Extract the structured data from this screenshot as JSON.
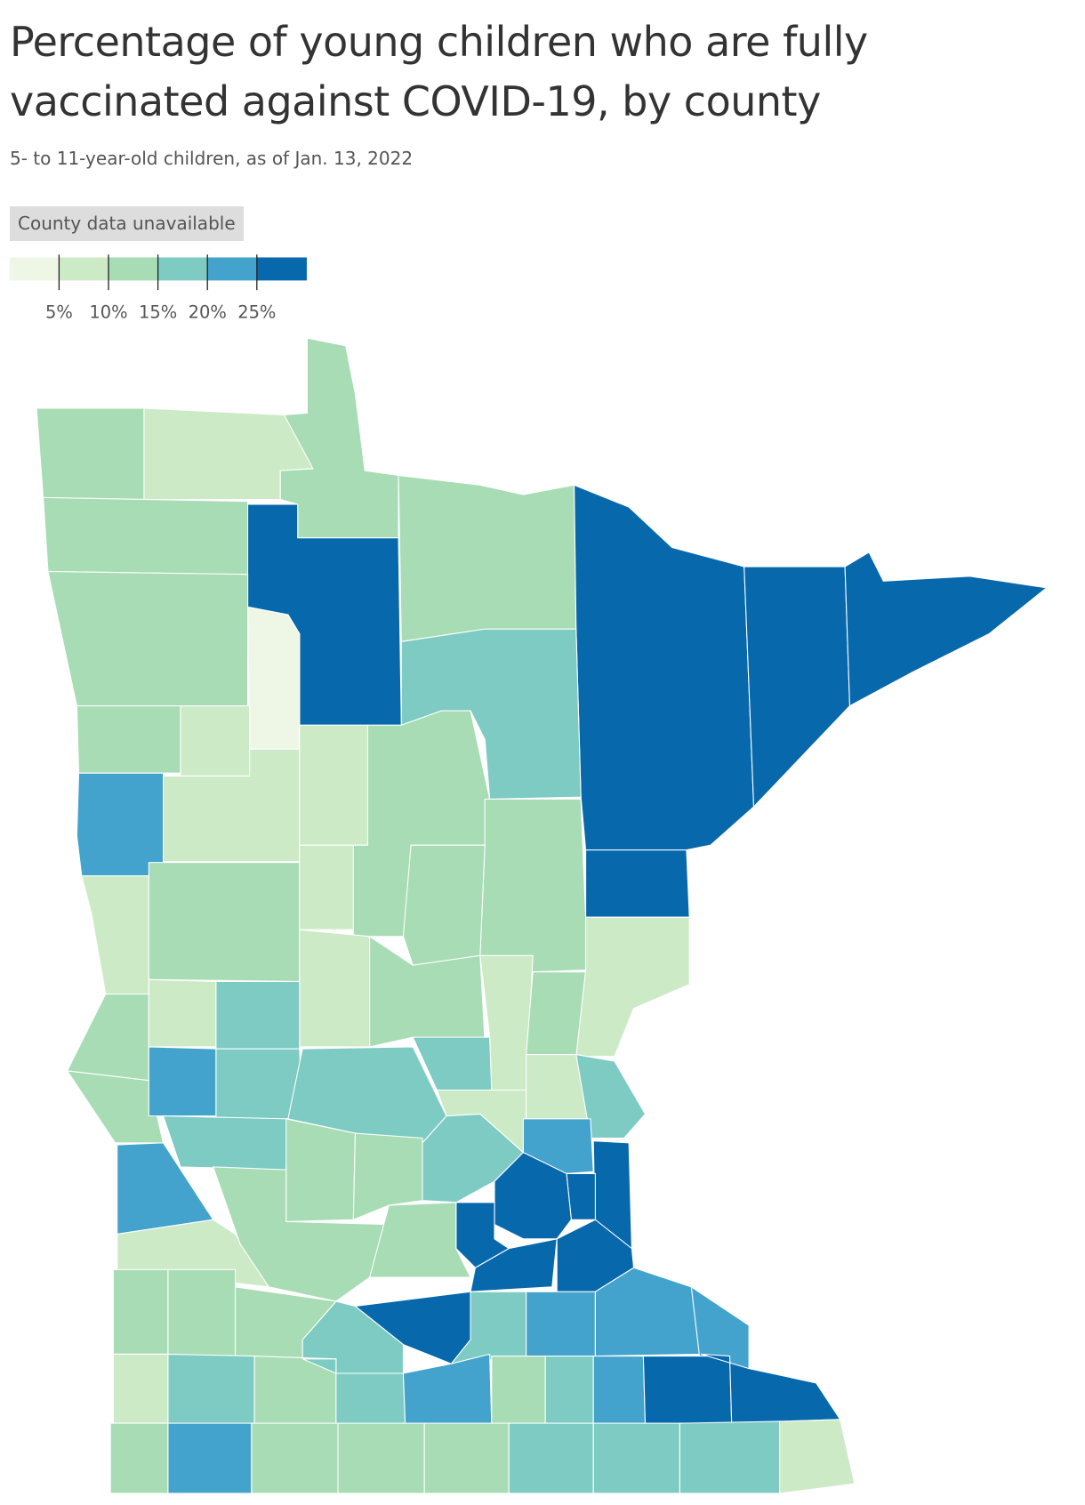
{
  "header": {
    "title": "Percentage of young children who are fully vaccinated against COVID-19, by county",
    "subtitle": "5- to 11-year-old children, as of Jan. 13, 2022"
  },
  "legend": {
    "unavailable": "County data unavailable",
    "colors": [
      "#eef7e6",
      "#cdeac7",
      "#a8dcb5",
      "#7ecbc4",
      "#43a3cc",
      "#0868ac"
    ],
    "ticks": [
      {
        "value": 5,
        "label": "5%"
      },
      {
        "value": 10,
        "label": "10%"
      },
      {
        "value": 15,
        "label": "15%"
      },
      {
        "value": 20,
        "label": "20%"
      },
      {
        "value": 25,
        "label": "25%"
      }
    ]
  }
}
